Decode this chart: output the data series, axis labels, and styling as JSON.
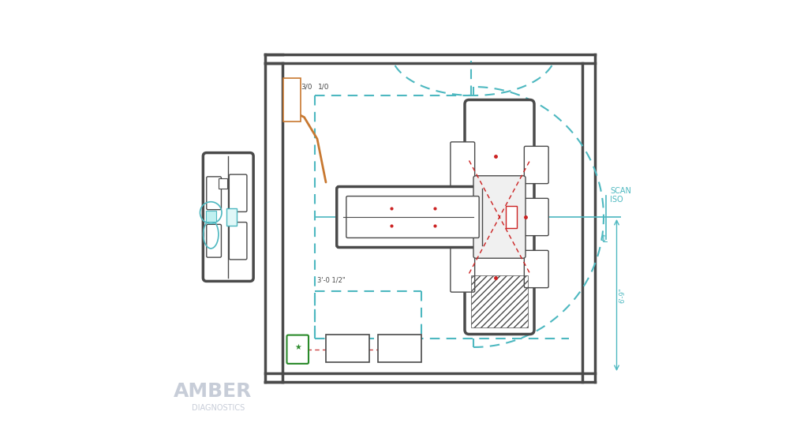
{
  "bg_color": "#ffffff",
  "wall_color": "#4a4a4a",
  "cyan_color": "#4db8c0",
  "orange_color": "#c87830",
  "green_color": "#2a8a2a",
  "red_color": "#cc2222",
  "amber_color": "#b0b8c8",
  "scan_iso_text": "SCAN\nISO",
  "label_30": "3/0",
  "label_10": "1/0",
  "label_dim": "3'-0 1/2\"",
  "label_69": "6'-9\""
}
